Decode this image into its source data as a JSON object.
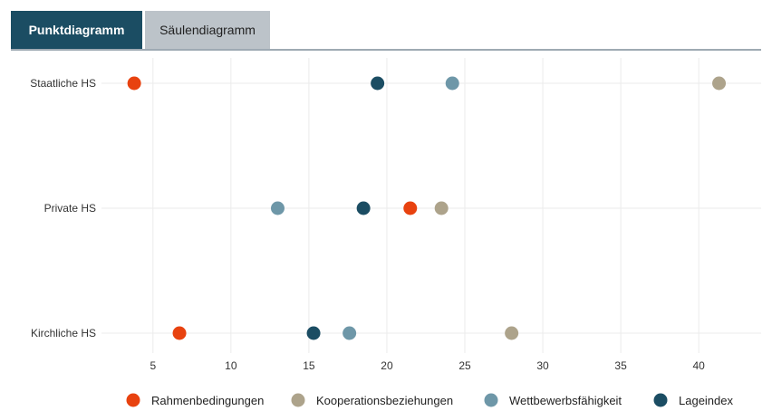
{
  "tabs": {
    "scatter_label": "Punktdiagramm",
    "bar_label": "Säulendiagramm"
  },
  "chart_data": {
    "type": "scatter",
    "categories": [
      "Staatliche HS",
      "Private HS",
      "Kirchliche HS"
    ],
    "series": [
      {
        "name": "Rahmenbedingungen",
        "color": "#e8420f",
        "values": [
          3.8,
          21.5,
          6.7
        ]
      },
      {
        "name": "Kooperationsbeziehungen",
        "color": "#ada38b",
        "values": [
          41.3,
          23.5,
          28.0
        ]
      },
      {
        "name": "Wettbewerbsfähigkeit",
        "color": "#6e97a8",
        "values": [
          24.2,
          13.0,
          17.6
        ]
      },
      {
        "name": "Lageindex",
        "color": "#1b4d63",
        "values": [
          19.4,
          18.5,
          15.3
        ]
      }
    ],
    "xlim": [
      1.7,
      44
    ],
    "xticks": [
      5,
      10,
      15,
      20,
      25,
      30,
      35,
      40
    ],
    "xlabel": "",
    "ylabel": "",
    "grid": true,
    "legend_position": "bottom"
  }
}
